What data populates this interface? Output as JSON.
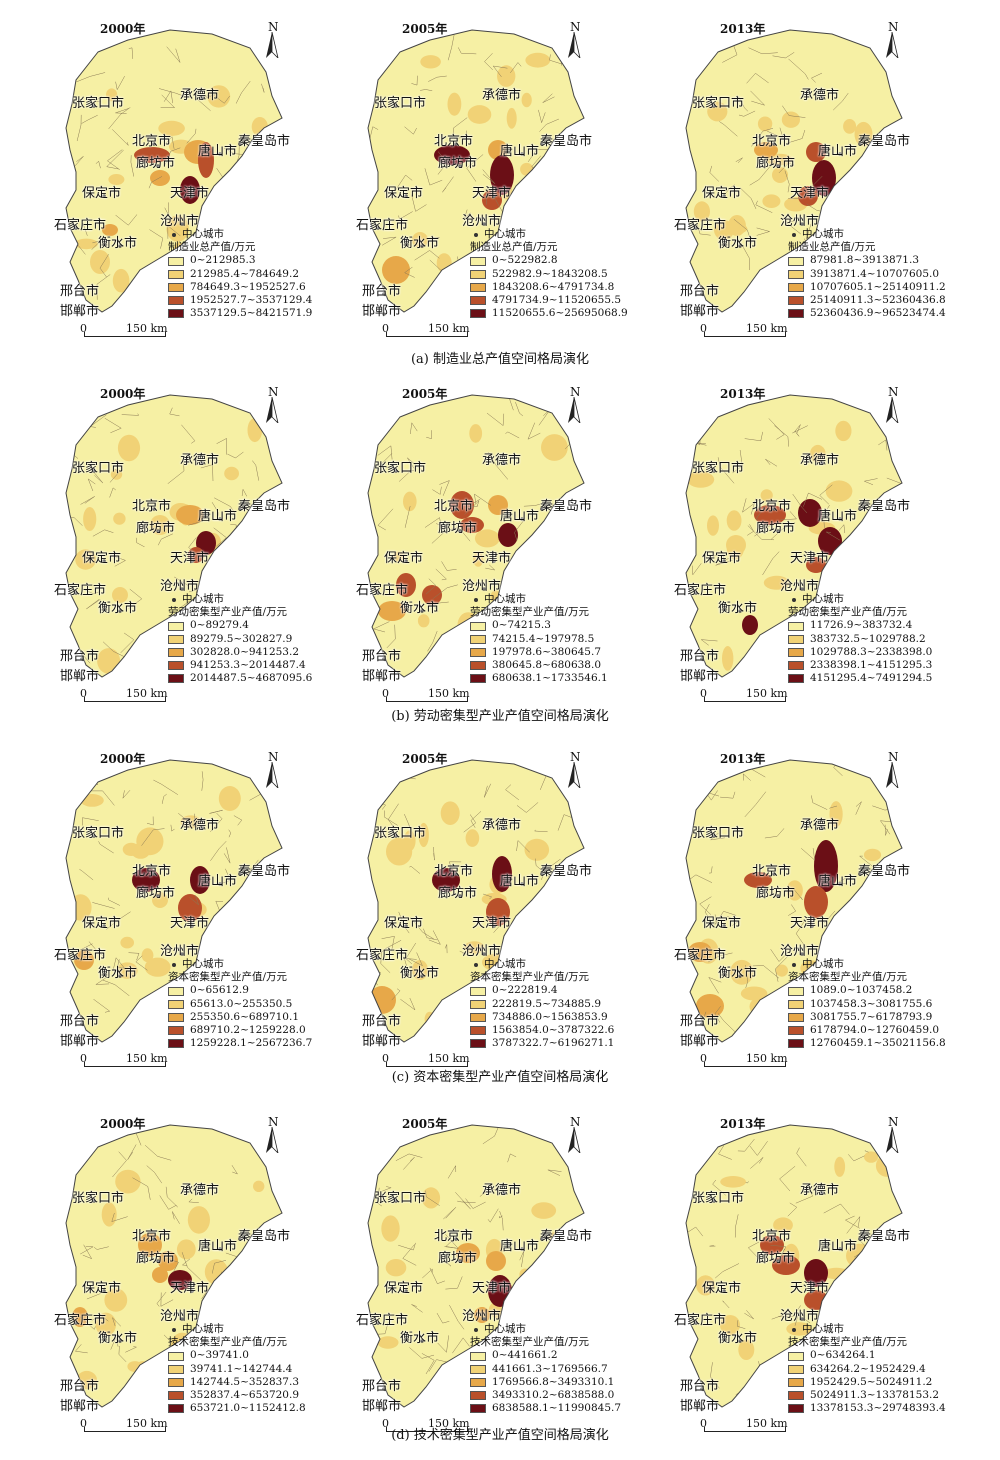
{
  "center_city_label": "中心城市",
  "scale": {
    "zero": "0",
    "distance": "150 km"
  },
  "north_label": "N",
  "colors": [
    "#f6f0a4",
    "#f1d276",
    "#e7a849",
    "#b9502b",
    "#6b0f16"
  ],
  "rows": [
    {
      "caption": "(a) 制造业总产值空间格局演化",
      "panels": [
        {
          "year": "2000年",
          "legend_title": "制造业总产值/万元",
          "legend": [
            "0~212985.3",
            "212985.4~784649.2",
            "784649.3~1952527.6",
            "1952527.7~3537129.4",
            "3537129.5~8421571.9"
          ]
        },
        {
          "year": "2005年",
          "legend_title": "制造业总产值/万元",
          "legend": [
            "0~522982.8",
            "522982.9~1843208.5",
            "1843208.6~4791734.8",
            "4791734.9~11520655.5",
            "11520655.6~25695068.9"
          ]
        },
        {
          "year": "2013年",
          "legend_title": "制造业总产值/万元",
          "legend": [
            "87981.8~3913871.3",
            "3913871.4~10707605.0",
            "10707605.1~25140911.2",
            "25140911.3~52360436.8",
            "52360436.9~96523474.4"
          ]
        }
      ]
    },
    {
      "caption": "(b) 劳动密集型产业产值空间格局演化",
      "panels": [
        {
          "year": "2000年",
          "legend_title": "劳动密集型产业产值/万元",
          "legend": [
            "0~89279.4",
            "89279.5~302827.9",
            "302828.0~941253.2",
            "941253.3~2014487.4",
            "2014487.5~4687095.6"
          ]
        },
        {
          "year": "2005年",
          "legend_title": "劳动密集型产业产值/万元",
          "legend": [
            "0~74215.3",
            "74215.4~197978.5",
            "197978.6~380645.7",
            "380645.8~680638.0",
            "680638.1~1733546.1"
          ]
        },
        {
          "year": "2013年",
          "legend_title": "劳动密集型产业产值/万元",
          "legend": [
            "11726.9~383732.4",
            "383732.5~1029788.2",
            "1029788.3~2338398.0",
            "2338398.1~4151295.3",
            "4151295.4~7491294.5"
          ]
        }
      ]
    },
    {
      "caption": "(c) 资本密集型产业产值空间格局演化",
      "panels": [
        {
          "year": "2000年",
          "legend_title": "资本密集型产业产值/万元",
          "legend": [
            "0~65612.9",
            "65613.0~255350.5",
            "255350.6~689710.1",
            "689710.2~1259228.0",
            "1259228.1~2567236.7"
          ]
        },
        {
          "year": "2005年",
          "legend_title": "资本密集型产业产值/万元",
          "legend": [
            "0~222819.4",
            "222819.5~734885.9",
            "734886.0~1563853.9",
            "1563854.0~3787322.6",
            "3787322.7~6196271.1"
          ]
        },
        {
          "year": "2013年",
          "legend_title": "资本密集型产业产值/万元",
          "legend": [
            "1089.0~1037458.2",
            "1037458.3~3081755.6",
            "3081755.7~6178793.9",
            "6178794.0~12760459.0",
            "12760459.1~35021156.8"
          ]
        }
      ]
    },
    {
      "caption": "(d) 技术密集型产业产值空间格局演化",
      "panels": [
        {
          "year": "2000年",
          "legend_title": "技术密集型产业产值/万元",
          "legend": [
            "0~39741.0",
            "39741.1~142744.4",
            "142744.5~352837.3",
            "352837.4~653720.9",
            "653721.0~1152412.8"
          ]
        },
        {
          "year": "2005年",
          "legend_title": "技术密集型产业产值/万元",
          "legend": [
            "0~441661.2",
            "441661.3~1769566.7",
            "1769566.8~3493310.1",
            "3493310.2~6838588.0",
            "6838588.1~11990845.7"
          ]
        },
        {
          "year": "2013年",
          "legend_title": "技术密集型产业产值/万元",
          "legend": [
            "0~634264.1",
            "634264.2~1952429.4",
            "1952429.5~5024911.2",
            "5024911.3~13378153.2",
            "13378153.3~29748393.4"
          ]
        }
      ]
    }
  ],
  "city_names": {
    "zhangjiakou": "张家口市",
    "chengde": "承德市",
    "beijing": "北京市",
    "langfang": "廊坊市",
    "tangshan": "唐山市",
    "qinhuangdao": "秦皇岛市",
    "tianjin": "天津市",
    "baoding": "保定市",
    "cangzhou": "沧州市",
    "shijiazhuang": "石家庄市",
    "hengshui": "衡水市",
    "xingtai": "邢台市",
    "handan": "邯郸市"
  }
}
